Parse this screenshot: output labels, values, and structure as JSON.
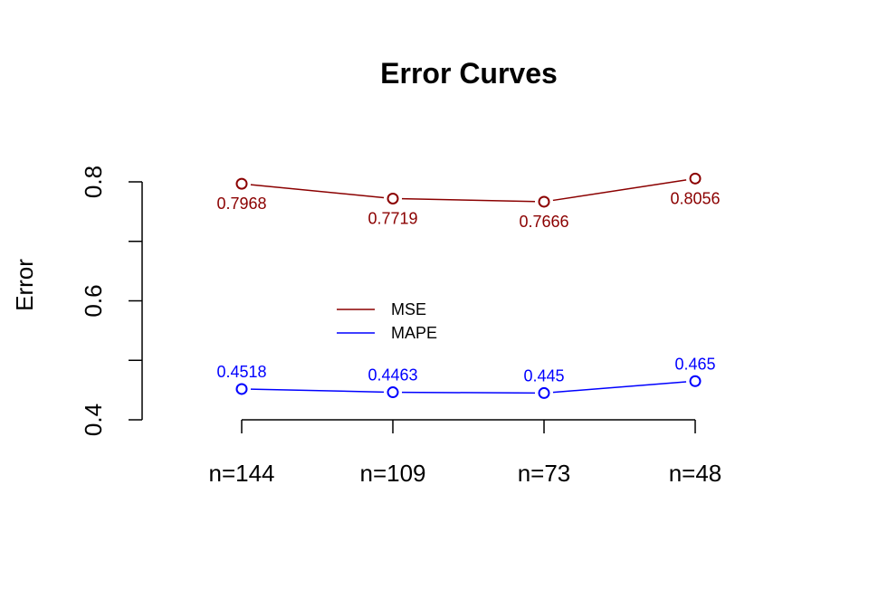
{
  "chart_data": {
    "type": "line",
    "title": "Error Curves",
    "xlabel": "",
    "ylabel": "Error",
    "categories": [
      "n=144",
      "n=109",
      "n=73",
      "n=48"
    ],
    "ylim": [
      0.4,
      0.8
    ],
    "y_ticks": [
      0.4,
      0.6,
      0.8
    ],
    "y_tick_labels": [
      "0.4",
      "0.6",
      "0.8"
    ],
    "grid": false,
    "legend_position": "center",
    "series": [
      {
        "name": "MSE",
        "color": "#8b0000",
        "values": [
          0.7968,
          0.7719,
          0.7666,
          0.8056
        ],
        "data_labels": [
          "0.7968",
          "0.7719",
          "0.7666",
          "0.8056"
        ],
        "label_side": "below"
      },
      {
        "name": "MAPE",
        "color": "#0000ff",
        "values": [
          0.4518,
          0.4463,
          0.445,
          0.465
        ],
        "data_labels": [
          "0.4518",
          "0.4463",
          "0.445",
          "0.465"
        ],
        "label_side": "above"
      }
    ]
  }
}
